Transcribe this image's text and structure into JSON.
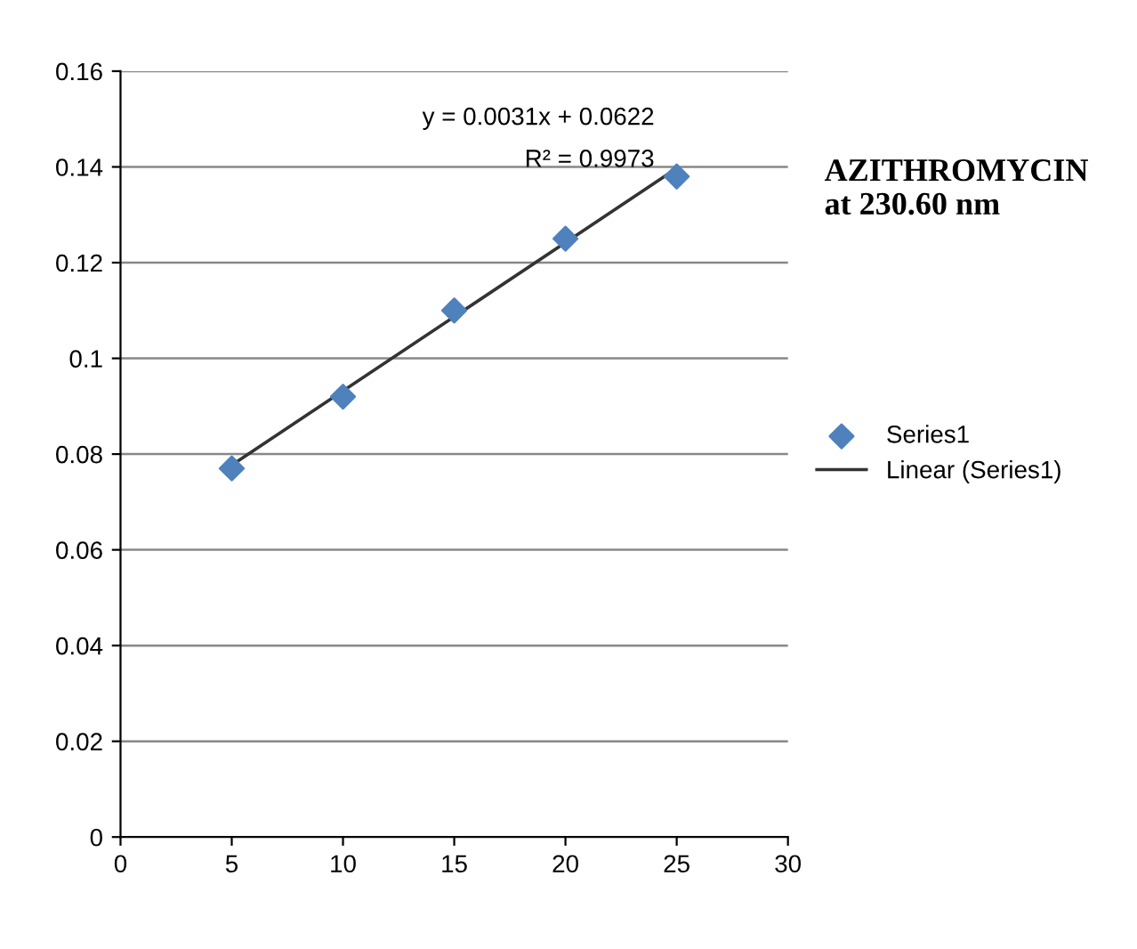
{
  "chart_data": {
    "type": "scatter",
    "title": "AZITHROMYCIN\nat 230.60 nm",
    "xlim": [
      0,
      30
    ],
    "xticks": [
      0,
      5,
      10,
      15,
      20,
      25,
      30
    ],
    "ylim": [
      0,
      0.16
    ],
    "yticks": [
      0,
      0.02,
      0.04,
      0.06,
      0.08,
      0.1,
      0.12,
      0.14,
      0.16
    ],
    "grid": "y",
    "legend": "right",
    "annotations": [
      "y = 0.0031x + 0.0622",
      "R² = 0.9973"
    ],
    "series": [
      {
        "name": "Series1",
        "marker": "diamond",
        "color": "#4f81bd",
        "x": [
          5,
          10,
          15,
          20,
          25
        ],
        "values": [
          0.077,
          0.092,
          0.11,
          0.125,
          0.138
        ]
      },
      {
        "name": "Linear (Series1)",
        "type": "line",
        "marker": "none",
        "line_style": "solid",
        "color": "#333333",
        "x": [
          5,
          25
        ],
        "values": [
          0.0777,
          0.1397
        ]
      }
    ]
  }
}
